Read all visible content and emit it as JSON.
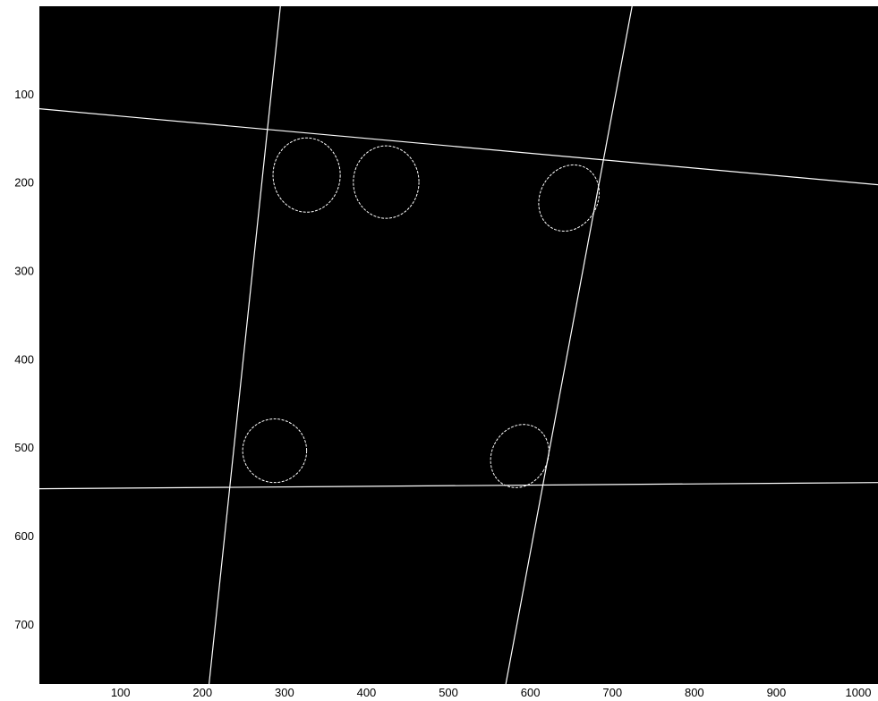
{
  "chart_data": {
    "type": "image",
    "background_color": "#000000",
    "foreground_color": "#ffffff",
    "x_axis": {
      "range": [
        1,
        1024
      ],
      "ticks": [
        100,
        200,
        300,
        400,
        500,
        600,
        700,
        800,
        900,
        1000
      ],
      "labels": [
        "100",
        "200",
        "300",
        "400",
        "500",
        "600",
        "700",
        "800",
        "900",
        "1000"
      ]
    },
    "y_axis": {
      "range": [
        1,
        768
      ],
      "reversed": true,
      "ticks": [
        100,
        200,
        300,
        400,
        500,
        600,
        700
      ],
      "labels": [
        "100",
        "200",
        "300",
        "400",
        "500",
        "600",
        "700"
      ]
    },
    "lines": [
      {
        "from": [
          1,
          117
        ],
        "to": [
          1024,
          203
        ]
      },
      {
        "from": [
          1,
          547
        ],
        "to": [
          1024,
          540
        ]
      },
      {
        "from": [
          295,
          1
        ],
        "to": [
          208,
          768
        ]
      },
      {
        "from": [
          724,
          1
        ],
        "to": [
          570,
          768
        ]
      }
    ],
    "ellipses": [
      {
        "center": [
          327,
          192
        ],
        "radii": [
          41,
          42
        ],
        "rotation": 0
      },
      {
        "center": [
          424,
          200
        ],
        "radii": [
          40,
          41
        ],
        "rotation": 0
      },
      {
        "center": [
          647,
          218
        ],
        "radii": [
          35,
          39
        ],
        "rotation": 30
      },
      {
        "center": [
          288,
          504
        ],
        "radii": [
          39,
          36
        ],
        "rotation": 0
      },
      {
        "center": [
          587,
          510
        ],
        "radii": [
          34,
          37
        ],
        "rotation": 30
      }
    ]
  }
}
